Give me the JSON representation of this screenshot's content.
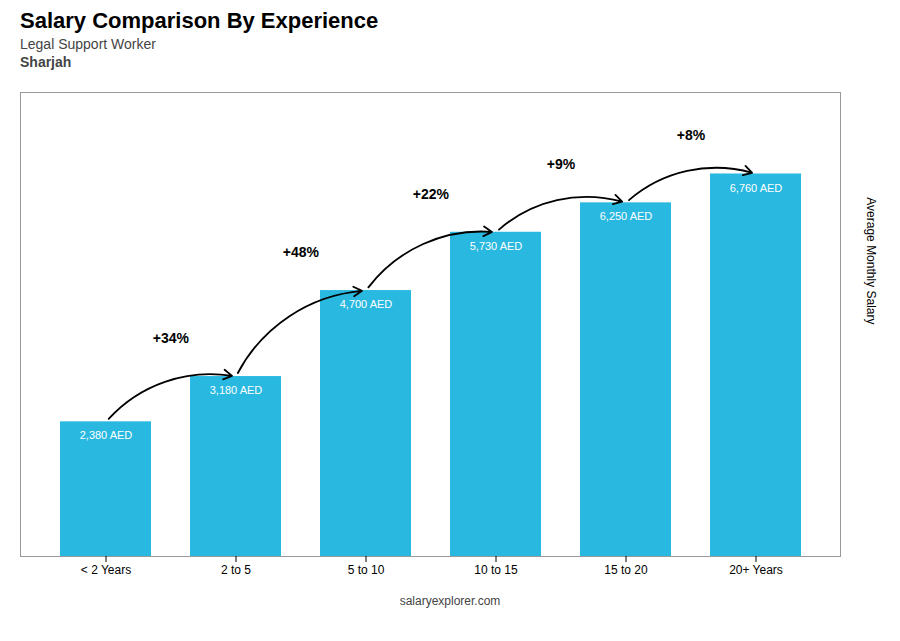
{
  "chart_data": {
    "type": "bar",
    "title": "Salary Comparison By Experience",
    "subtitle": [
      "Legal Support Worker",
      "Sharjah"
    ],
    "ylabel": "Average Monthly Salary",
    "caption": "salaryexplorer.com",
    "categories": [
      "< 2 Years",
      "2 to 5",
      "5 to 10",
      "10 to 15",
      "15 to 20",
      "20+ Years"
    ],
    "values": [
      2380,
      3180,
      4700,
      5730,
      6250,
      6760
    ],
    "value_labels": [
      "2,380 AED",
      "3,180 AED",
      "4,700 AED",
      "5,730 AED",
      "6,250 AED",
      "6,760 AED"
    ],
    "data_labels": true,
    "color": "#29b8e0",
    "ylim": [
      0,
      8200
    ],
    "tick_labels": "x",
    "grid": false,
    "annotations": [
      {
        "from": "< 2 Years",
        "to": "2 to 5",
        "text": "+34%"
      },
      {
        "from": "2 to 5",
        "to": "5 to 10",
        "text": "+48%"
      },
      {
        "from": "5 to 10",
        "to": "10 to 15",
        "text": "+22%"
      },
      {
        "from": "10 to 15",
        "to": "15 to 20",
        "text": "+9%"
      },
      {
        "from": "15 to 20",
        "to": "20+ Years",
        "text": "+8%"
      }
    ]
  }
}
